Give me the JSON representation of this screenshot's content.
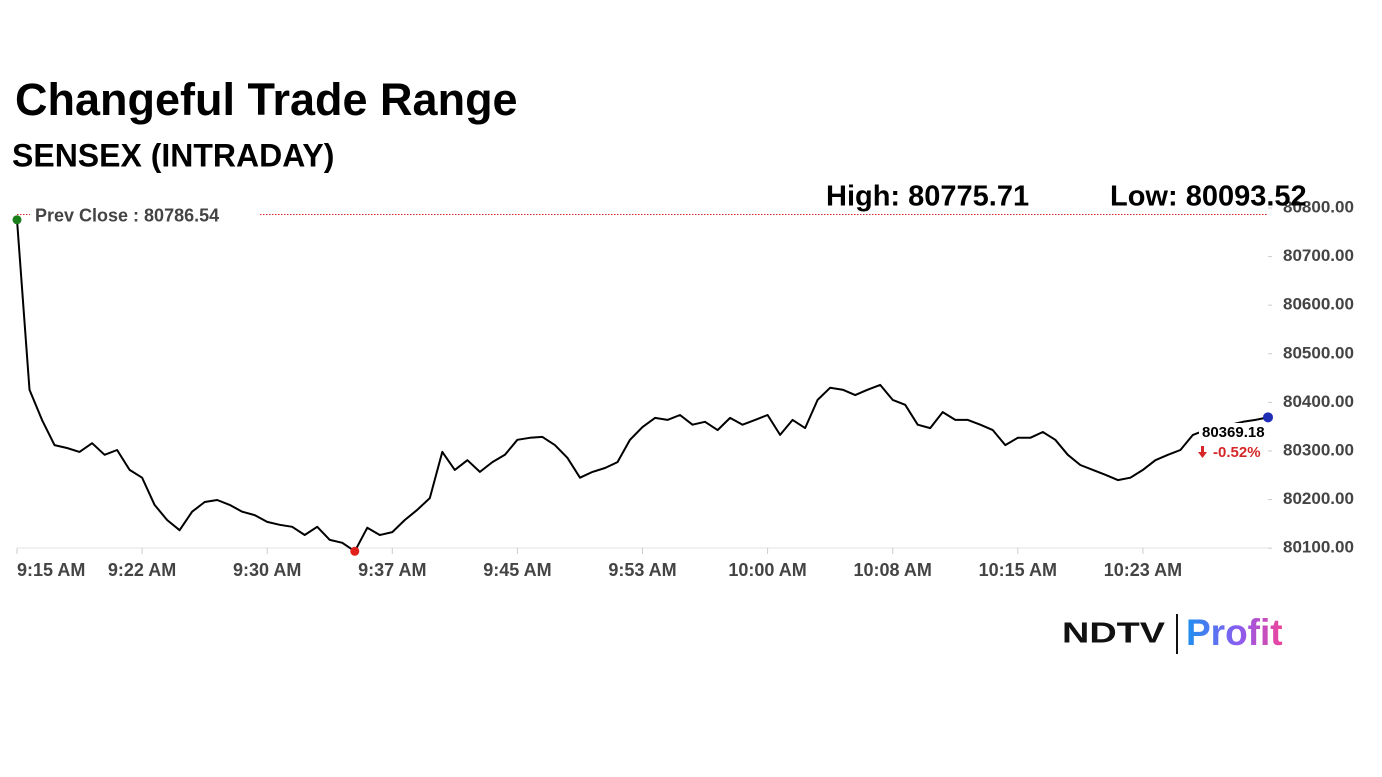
{
  "chart_data": {
    "type": "line",
    "title": "Changeful Trade Range",
    "subtitle": "SENSEX (INTRADAY)",
    "high_label": "High: 80775.71",
    "low_label": "Low: 80093.52",
    "prev_close": {
      "value": 80786.54,
      "label": "Prev Close : 80786.54"
    },
    "prev_close_color": "#d62728",
    "last_label": "80369.18",
    "change_label": "-0.52%",
    "change_color": "#d62728",
    "categories": [
      "9:15 AM",
      null,
      null,
      null,
      null,
      null,
      null,
      null,
      null,
      null,
      "9:22 AM",
      null,
      null,
      null,
      null,
      null,
      null,
      null,
      null,
      null,
      "9:30 AM",
      null,
      null,
      null,
      null,
      null,
      null,
      null,
      null,
      null,
      "9:37 AM",
      null,
      null,
      null,
      null,
      null,
      null,
      null,
      null,
      null,
      "9:45 AM",
      null,
      null,
      null,
      null,
      null,
      null,
      null,
      null,
      null,
      "9:53 AM",
      null,
      null,
      null,
      null,
      null,
      null,
      null,
      null,
      null,
      "10:00 AM",
      null,
      null,
      null,
      null,
      null,
      null,
      null,
      null,
      null,
      "10:08 AM",
      null,
      null,
      null,
      null,
      null,
      null,
      null,
      null,
      null,
      "10:15 AM",
      null,
      null,
      null,
      null,
      null,
      null,
      null,
      null,
      null,
      "10:23 AM",
      null,
      null,
      null,
      null,
      null,
      null,
      null,
      null,
      null,
      null
    ],
    "series": [
      {
        "name": "SENSEX",
        "color": "#000000",
        "values": [
          80775.71,
          80426,
          80364,
          80312,
          80306,
          80298,
          80316,
          80292,
          80302,
          80261,
          80245,
          80189,
          80158,
          80137,
          80175,
          80195,
          80199,
          80189,
          80175,
          80168,
          80154,
          80148,
          80144,
          80127,
          80144,
          80117,
          80111,
          80093.52,
          80142,
          80127,
          80133,
          80158,
          80179,
          80203,
          80298,
          80261,
          80281,
          80257,
          80277,
          80292,
          80323,
          80327,
          80329,
          80312,
          80286,
          80245,
          80257,
          80265,
          80277,
          80323,
          80349,
          80368,
          80364,
          80374,
          80354,
          80360,
          80343,
          80368,
          80354,
          80364,
          80374,
          80333,
          80364,
          80347,
          80405,
          80430,
          80426,
          80415,
          80426,
          80436,
          80405,
          80395,
          80354,
          80347,
          80380,
          80364,
          80364,
          80354,
          80343,
          80312,
          80327,
          80327,
          80339,
          80323,
          80292,
          80271,
          80261,
          80251,
          80240,
          80245,
          80261,
          80281,
          80292,
          80302,
          80333,
          80343,
          80347,
          80354,
          80360,
          80364,
          80369.18
        ]
      }
    ],
    "start_marker_color": "#1a7f1a",
    "low_marker_color": "#e0201b",
    "end_marker_color": "#1f2fb5",
    "ylim": [
      80090,
      80800
    ],
    "yticks": [
      {
        "value": 80100,
        "label": "80100.00"
      },
      {
        "value": 80200,
        "label": "80200.00"
      },
      {
        "value": 80300,
        "label": "80300.00"
      },
      {
        "value": 80400,
        "label": "80400.00"
      },
      {
        "value": 80500,
        "label": "80500.00"
      },
      {
        "value": 80600,
        "label": "80600.00"
      },
      {
        "value": 80700,
        "label": "80700.00"
      },
      {
        "value": 80800,
        "label": "80800.00"
      }
    ],
    "logo": {
      "brand": "NDTV",
      "product": "Profit"
    }
  }
}
